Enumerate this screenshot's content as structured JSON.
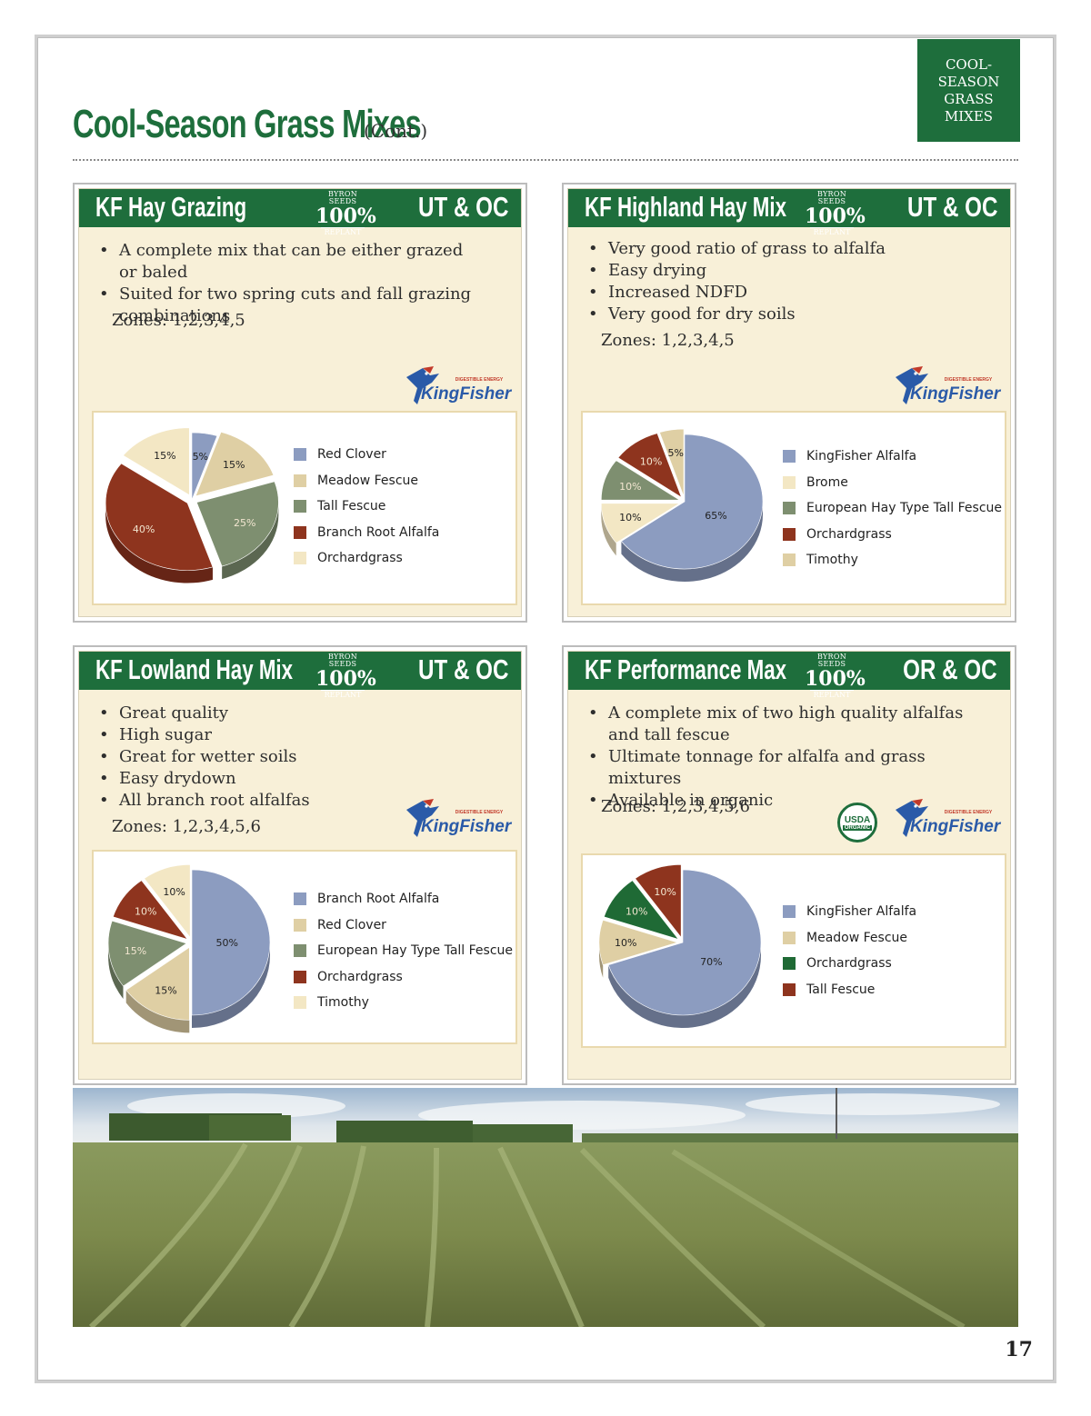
{
  "section_tab": [
    "COOL-",
    "SEASON",
    "GRASS",
    "MIXES"
  ],
  "page_title": "Cool-Season Grass Mixes",
  "page_title_cont": "(Cont.)",
  "badge": {
    "top": "BYRON SEEDS",
    "mid": "100%",
    "bottom": "REPLANT"
  },
  "logo_text": "KingFisher",
  "logo_tag": "DIGESTIBLE ENERGY",
  "usda": {
    "top": "USDA",
    "bottom": "ORGANIC"
  },
  "page_number": "17",
  "colors": {
    "green": "#1e6e3c",
    "cream": "#f8f0d8",
    "blue": "#8c9cc0",
    "tan": "#dfcfa4",
    "sage": "#7e8f70",
    "rust": "#8e341e",
    "pale": "#f3e7c4",
    "dkgreen": "#1f6a35"
  },
  "cards": [
    {
      "name": "KF Hay Grazing",
      "code": "UT & OC",
      "bullets": [
        "A complete mix that can be either grazed or baled",
        "Suited for two spring cuts and fall grazing combinations"
      ],
      "zones": "Zones: 1,2,3,4,5",
      "chart_data": {
        "type": "pie",
        "categories": [
          "Red Clover",
          "Meadow Fescue",
          "Tall Fescue",
          "Branch Root Alfalfa",
          "Orchardgrass"
        ],
        "values": [
          5,
          15,
          25,
          40,
          15
        ],
        "labels": [
          "5%",
          "15%",
          "25%",
          "40%",
          "15%"
        ],
        "colors": [
          "#8c9cc0",
          "#dfcfa4",
          "#7e8f70",
          "#8e341e",
          "#f3e7c4"
        ]
      }
    },
    {
      "name": "KF Highland Hay Mix",
      "code": "UT & OC",
      "bullets": [
        "Very good ratio of grass to alfalfa",
        "Easy drying",
        "Increased NDFD",
        "Very good for dry soils"
      ],
      "zones": "Zones: 1,2,3,4,5",
      "chart_data": {
        "type": "pie",
        "categories": [
          "KingFisher Alfalfa",
          "Brome",
          "European Hay Type Tall Fescue",
          "Orchardgrass",
          "Timothy"
        ],
        "values": [
          65,
          10,
          10,
          10,
          5
        ],
        "labels": [
          "65%",
          "10%",
          "10%",
          "10%",
          "5%"
        ],
        "colors": [
          "#8c9cc0",
          "#f3e7c4",
          "#7e8f70",
          "#8e341e",
          "#dfcfa4"
        ]
      }
    },
    {
      "name": "KF Lowland Hay Mix",
      "code": "UT & OC",
      "bullets": [
        "Great quality",
        "High sugar",
        "Great for wetter soils",
        "Easy drydown",
        "All branch root alfalfas"
      ],
      "zones": "Zones: 1,2,3,4,5,6",
      "chart_data": {
        "type": "pie",
        "categories": [
          "Branch Root Alfalfa",
          "Red Clover",
          "European Hay Type Tall Fescue",
          "Orchardgrass",
          "Timothy"
        ],
        "values": [
          50,
          15,
          15,
          10,
          10
        ],
        "labels": [
          "50%",
          "15%",
          "15%",
          "10%",
          "10%"
        ],
        "colors": [
          "#8c9cc0",
          "#dfcfa4",
          "#7e8f70",
          "#8e341e",
          "#f3e7c4"
        ]
      }
    },
    {
      "name": "KF Performance Max",
      "code": "OR & OC",
      "bullets": [
        "A complete mix of two high quality alfalfas and tall fescue",
        "Ultimate tonnage for alfalfa and grass mixtures",
        "Available in organic"
      ],
      "zones": "Zones: 1,2,3,4,5,6",
      "chart_data": {
        "type": "pie",
        "categories": [
          "KingFisher Alfalfa",
          "Meadow Fescue",
          "Orchardgrass",
          "Tall Fescue"
        ],
        "values": [
          70,
          10,
          10,
          10
        ],
        "labels": [
          "70%",
          "10%",
          "10%",
          "10%"
        ],
        "colors": [
          "#8c9cc0",
          "#dfcfa4",
          "#1f6a35",
          "#8e341e"
        ]
      }
    }
  ]
}
